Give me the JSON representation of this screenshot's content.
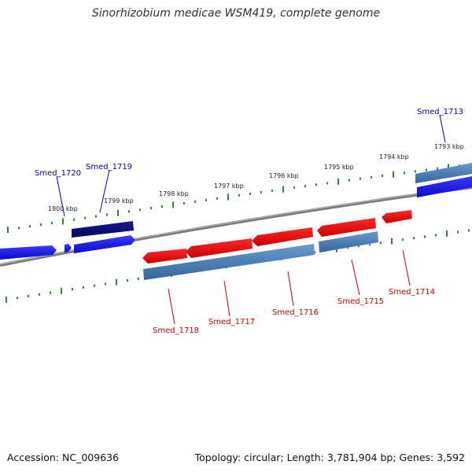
{
  "header": {
    "title": "Sinorhizobium medicae WSM419, complete genome"
  },
  "footer": {
    "accession": "Accession: NC_009636",
    "summary": "Topology: circular; Length: 3,781,904 bp; Genes: 3,592"
  },
  "ruler": {
    "ticks": [
      "1800 kbp",
      "1799 kbp",
      "1798 kbp",
      "1797 kbp",
      "1796 kbp",
      "1795 kbp",
      "1794 kbp",
      "1793 kbp"
    ]
  },
  "genes": {
    "forward": [
      "Smed_1720",
      "Smed_1719",
      "Smed_1713"
    ],
    "reverse": [
      "Smed_1718",
      "Smed_1717",
      "Smed_1716",
      "Smed_1715",
      "Smed_1714"
    ]
  },
  "colors": {
    "forward_cds": "#1010e8",
    "forward_dark": "#0a0a7a",
    "forward_label": "#0000bb",
    "reverse_cds": "#ee1111",
    "reverse_label": "#cc0000",
    "rna_steel": "#4a80b4",
    "backbone": "#808080",
    "tick": "#2e8b2e"
  }
}
